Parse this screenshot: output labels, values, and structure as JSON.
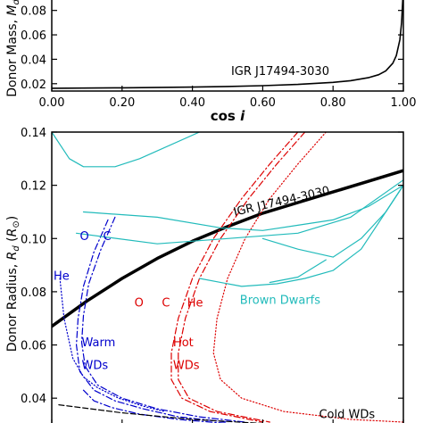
{
  "chart_data": [
    {
      "type": "line",
      "xlabel": "cos",
      "xlabel_italic": "i",
      "ylabel": "Donor Mass, ",
      "ylabel_symbol": "M",
      "ylabel_sub": "d",
      "ylabel_tail": " (",
      "xlim": [
        0.0,
        1.0
      ],
      "ylim": [
        0.014,
        0.09
      ],
      "x_ticks": [
        {
          "value": 0.0,
          "label": "0.00"
        },
        {
          "value": 0.2,
          "label": "0.20"
        },
        {
          "value": 0.4,
          "label": "0.40"
        },
        {
          "value": 0.6,
          "label": "0.60"
        },
        {
          "value": 0.8,
          "label": "0.80"
        },
        {
          "value": 1.0,
          "label": "1.00"
        }
      ],
      "y_ticks": [
        {
          "value": 0.02,
          "label": "0.02"
        },
        {
          "value": 0.04,
          "label": "0.04"
        },
        {
          "value": 0.06,
          "label": "0.06"
        },
        {
          "value": 0.08,
          "label": "0.08"
        }
      ],
      "series": [
        {
          "name": "IGR J17494-3030",
          "color": "#000000",
          "x": [
            0.0,
            0.2,
            0.4,
            0.5,
            0.6,
            0.7,
            0.8,
            0.85,
            0.9,
            0.93,
            0.95,
            0.97,
            0.98,
            0.99,
            0.995,
            1.0
          ],
          "y": [
            0.0163,
            0.0166,
            0.0172,
            0.0177,
            0.0184,
            0.0194,
            0.0211,
            0.0225,
            0.0249,
            0.0274,
            0.0305,
            0.0368,
            0.043,
            0.056,
            0.07,
            0.098
          ]
        }
      ],
      "annotations": [
        {
          "text": "IGR J17494-3030",
          "x": 0.51,
          "y": 0.027
        }
      ]
    },
    {
      "type": "line",
      "xlabel": "",
      "ylabel": "Donor Radius, ",
      "ylabel_symbol": "R",
      "ylabel_sub": "d",
      "ylabel_tail": " (",
      "ylabel_unit": "R",
      "ylabel_unit_sub": "⊙",
      "ylabel_close": ")",
      "xlim": [
        0.0,
        1.0
      ],
      "ylim": [
        0.03,
        0.14
      ],
      "y_ticks": [
        {
          "value": 0.04,
          "label": "0.04"
        },
        {
          "value": 0.06,
          "label": "0.06"
        },
        {
          "value": 0.08,
          "label": "0.08"
        },
        {
          "value": 0.1,
          "label": "0.10"
        },
        {
          "value": 0.12,
          "label": "0.12"
        },
        {
          "value": 0.14,
          "label": "0.14"
        }
      ],
      "colors": {
        "constraint": "#000000",
        "warm": "#0000cc",
        "hot": "#dd0000",
        "brown": "#22bbbb",
        "cold": "#000000"
      },
      "series": [
        {
          "name": "IGR J17494-3030",
          "group": "constraint",
          "style": "solid",
          "width": 3.5,
          "x": [
            0.0,
            0.1,
            0.2,
            0.3,
            0.4,
            0.5,
            0.6,
            0.7,
            0.8,
            0.9,
            1.0
          ],
          "y": [
            0.067,
            0.0765,
            0.085,
            0.0925,
            0.099,
            0.1045,
            0.1095,
            0.1135,
            0.1175,
            0.1215,
            0.1255
          ]
        },
        {
          "name": "He",
          "group": "warm",
          "style": "dotted",
          "width": 1.2,
          "x": [
            0.023,
            0.035,
            0.06,
            0.09,
            0.13,
            0.19,
            0.26,
            0.32
          ],
          "y": [
            0.085,
            0.07,
            0.055,
            0.048,
            0.044,
            0.04,
            0.037,
            0.035
          ]
        },
        {
          "name": "O",
          "group": "warm",
          "style": "dashdot",
          "width": 1.2,
          "x": [
            0.16,
            0.12,
            0.09,
            0.075,
            0.07,
            0.08,
            0.12,
            0.18,
            0.26,
            0.36,
            0.5
          ],
          "y": [
            0.107,
            0.095,
            0.082,
            0.07,
            0.06,
            0.05,
            0.043,
            0.039,
            0.036,
            0.033,
            0.031
          ]
        },
        {
          "name": "C",
          "group": "warm",
          "style": "dashdot",
          "width": 1.2,
          "x": [
            0.18,
            0.14,
            0.105,
            0.09,
            0.085,
            0.095,
            0.13,
            0.2,
            0.3,
            0.42,
            0.55
          ],
          "y": [
            0.108,
            0.096,
            0.083,
            0.071,
            0.061,
            0.052,
            0.045,
            0.04,
            0.036,
            0.033,
            0.031
          ]
        },
        {
          "name": "Warm WDs low",
          "group": "warm",
          "style": "dashdot",
          "width": 1.2,
          "x": [
            0.09,
            0.12,
            0.17,
            0.25,
            0.36,
            0.5,
            0.7
          ],
          "y": [
            0.043,
            0.039,
            0.0365,
            0.034,
            0.032,
            0.0305,
            0.0295
          ]
        },
        {
          "name": "O hot",
          "group": "hot",
          "style": "dashdot",
          "width": 1.2,
          "x": [
            0.7,
            0.62,
            0.54,
            0.46,
            0.4,
            0.36,
            0.34,
            0.34,
            0.37,
            0.45,
            0.6
          ],
          "y": [
            0.14,
            0.128,
            0.115,
            0.1,
            0.085,
            0.07,
            0.057,
            0.047,
            0.04,
            0.035,
            0.031
          ]
        },
        {
          "name": "C hot",
          "group": "hot",
          "style": "dashdot",
          "width": 1.2,
          "x": [
            0.72,
            0.64,
            0.56,
            0.48,
            0.42,
            0.38,
            0.36,
            0.36,
            0.39,
            0.47,
            0.62
          ],
          "y": [
            0.14,
            0.128,
            0.115,
            0.1,
            0.085,
            0.07,
            0.057,
            0.047,
            0.04,
            0.035,
            0.031
          ]
        },
        {
          "name": "He hot",
          "group": "hot",
          "style": "dotted",
          "width": 1.2,
          "x": [
            0.78,
            0.7,
            0.62,
            0.55,
            0.5,
            0.47,
            0.46,
            0.48,
            0.54,
            0.66,
            0.85,
            1.0
          ],
          "y": [
            0.14,
            0.128,
            0.115,
            0.1,
            0.085,
            0.07,
            0.057,
            0.047,
            0.04,
            0.035,
            0.032,
            0.031
          ]
        },
        {
          "name": "Brown Dwarfs A",
          "group": "brown",
          "style": "solid",
          "width": 1.2,
          "x": [
            0.0,
            0.05,
            0.09,
            0.18,
            0.25,
            0.42
          ],
          "y": [
            0.14,
            0.13,
            0.127,
            0.127,
            0.13,
            0.14
          ]
        },
        {
          "name": "Brown Dwarfs B",
          "group": "brown",
          "style": "solid",
          "width": 1.2,
          "x": [
            0.09,
            0.3,
            0.48,
            0.6,
            0.7,
            0.8,
            0.9,
            1.0
          ],
          "y": [
            0.11,
            0.108,
            0.104,
            0.103,
            0.105,
            0.107,
            0.112,
            0.12
          ]
        },
        {
          "name": "Brown Dwarfs C",
          "group": "brown",
          "style": "solid",
          "width": 1.2,
          "x": [
            0.07,
            0.3,
            0.5,
            0.7,
            0.85,
            1.0
          ],
          "y": [
            0.102,
            0.098,
            0.1,
            0.102,
            0.108,
            0.122
          ]
        },
        {
          "name": "Brown Dwarfs D",
          "group": "brown",
          "style": "solid",
          "width": 1.2,
          "x": [
            0.6,
            0.7,
            0.8,
            0.88,
            0.95,
            1.0
          ],
          "y": [
            0.1,
            0.096,
            0.093,
            0.1,
            0.11,
            0.12
          ]
        },
        {
          "name": "Brown Dwarfs E",
          "group": "brown",
          "style": "solid",
          "width": 1.2,
          "x": [
            0.42,
            0.54,
            0.64,
            0.72,
            0.8,
            0.88,
            0.95,
            1.0
          ],
          "y": [
            0.085,
            0.082,
            0.083,
            0.085,
            0.088,
            0.096,
            0.11,
            0.12
          ]
        },
        {
          "name": "Brown Dwarfs F",
          "group": "brown",
          "style": "solid",
          "width": 1.2,
          "x": [
            0.62,
            0.7,
            0.78
          ],
          "y": [
            0.0835,
            0.0855,
            0.092
          ]
        },
        {
          "name": "Cold WDs",
          "group": "cold",
          "style": "dashed",
          "width": 1.2,
          "x": [
            0.02,
            0.2,
            0.4,
            0.6,
            0.8,
            0.95
          ],
          "y": [
            0.0375,
            0.0345,
            0.032,
            0.0305,
            0.0297,
            0.0293
          ]
        }
      ],
      "annotations": [
        {
          "text": "IGR J17494-3030",
          "x": 0.52,
          "y": 0.1085,
          "color": "#000000",
          "rotate": -13
        },
        {
          "text": "O",
          "x": 0.08,
          "y": 0.0995,
          "color": "#0000cc"
        },
        {
          "text": "C",
          "x": 0.146,
          "y": 0.0995,
          "color": "#0000cc"
        },
        {
          "text": "He",
          "x": 0.005,
          "y": 0.0845,
          "color": "#0000cc"
        },
        {
          "text": "Warm",
          "x": 0.085,
          "y": 0.0595,
          "color": "#0000cc"
        },
        {
          "text": "WDs",
          "x": 0.085,
          "y": 0.051,
          "color": "#0000cc"
        },
        {
          "text": "O",
          "x": 0.235,
          "y": 0.0745,
          "color": "#dd0000"
        },
        {
          "text": "C",
          "x": 0.313,
          "y": 0.0745,
          "color": "#dd0000"
        },
        {
          "text": "He",
          "x": 0.385,
          "y": 0.0745,
          "color": "#dd0000"
        },
        {
          "text": "Hot",
          "x": 0.345,
          "y": 0.0595,
          "color": "#dd0000"
        },
        {
          "text": "WDs",
          "x": 0.345,
          "y": 0.051,
          "color": "#dd0000"
        },
        {
          "text": "Brown Dwarfs",
          "x": 0.535,
          "y": 0.0755,
          "color": "#22bbbb"
        },
        {
          "text": "Cold WDs",
          "x": 0.76,
          "y": 0.0325,
          "color": "#000000"
        }
      ]
    }
  ]
}
